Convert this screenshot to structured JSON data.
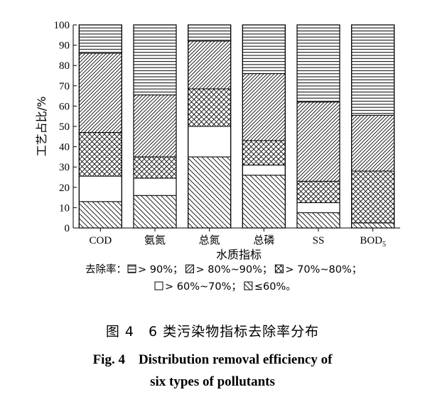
{
  "chart_data": {
    "type": "bar",
    "stacked": true,
    "categories": [
      "COD",
      "氨氮",
      "总氮",
      "总磷",
      "SS",
      "BOD5"
    ],
    "category_labels": [
      {
        "text": "COD",
        "sub": ""
      },
      {
        "text": "氨氮",
        "sub": ""
      },
      {
        "text": "总氮",
        "sub": ""
      },
      {
        "text": "总磷",
        "sub": ""
      },
      {
        "text": "SS",
        "sub": ""
      },
      {
        "text": "BOD",
        "sub": "5"
      }
    ],
    "series": [
      {
        "name": "≤60%",
        "pattern": "diag-back",
        "values": [
          13,
          16,
          35,
          26,
          7.5,
          2.5
        ]
      },
      {
        "name": ">60%~70%",
        "pattern": "blank",
        "values": [
          12.5,
          8.5,
          15,
          5,
          5,
          0
        ]
      },
      {
        "name": ">70%~80%",
        "pattern": "crosshatch",
        "values": [
          21.5,
          10.5,
          18.5,
          12,
          10.5,
          25.5
        ]
      },
      {
        "name": ">80%~90%",
        "pattern": "diag-fwd",
        "values": [
          39,
          30.5,
          23.5,
          33,
          39,
          27.5
        ]
      },
      {
        "name": ">90%",
        "pattern": "horizontal",
        "values": [
          14,
          34.5,
          8,
          24,
          38,
          44.5
        ]
      }
    ],
    "xlabel": "水质指标",
    "ylabel": "工艺占比/%",
    "ylim": [
      0,
      100
    ],
    "yticks": [
      0,
      10,
      20,
      30,
      40,
      50,
      60,
      70,
      80,
      90,
      100
    ],
    "grid": false,
    "legend_prefix": "去除率：",
    "legend_lines": [
      [
        {
          "pattern": "horizontal",
          "label": "> 90%；"
        },
        {
          "pattern": "diag-fwd",
          "label": "> 80%~90%；"
        },
        {
          "pattern": "crosshatch",
          "label": "> 70%~80%；"
        }
      ],
      [
        {
          "pattern": "blank",
          "label": "> 60%~70%；"
        },
        {
          "pattern": "diag-back",
          "label": "≤60%。"
        }
      ]
    ]
  },
  "caption": {
    "cn": "图 4　6 类污染物指标去除率分布",
    "en_line1": "Fig. 4　Distribution removal efficiency of",
    "en_line2": "six types of pollutants"
  }
}
